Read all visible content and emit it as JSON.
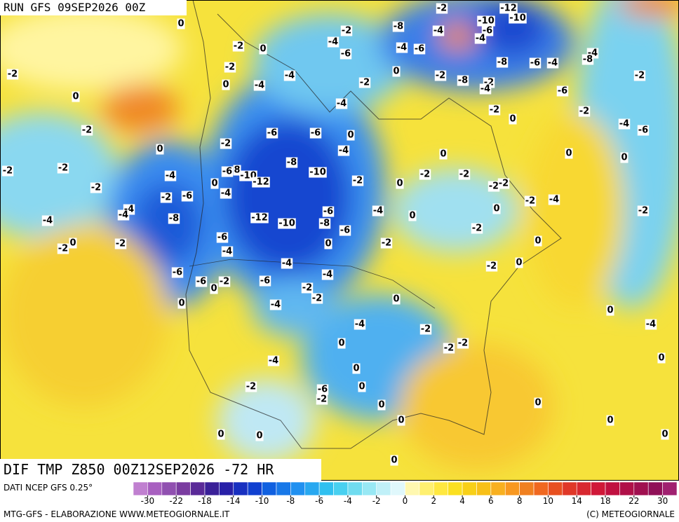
{
  "header": {
    "run": "RUN GFS 09SEP2026 00Z"
  },
  "map": {
    "title": "DIF TMP Z850 00Z12SEP2026 -72 HR",
    "contour_labels": [
      -2,
      -12,
      -8,
      -4,
      -10,
      -10,
      -6,
      -4,
      -2,
      -4,
      -6,
      -4,
      -6,
      -4,
      -8,
      -8,
      -6,
      -4,
      0,
      -2,
      -8,
      -2,
      -4,
      -2,
      -6,
      -2,
      -2,
      0,
      -4,
      -6,
      -2,
      0,
      0,
      -2,
      0,
      -2,
      0,
      -4,
      -4,
      -2,
      -4,
      -2,
      0,
      -6,
      -6,
      0,
      -2,
      -4,
      0,
      0,
      0,
      -2,
      -2,
      -4,
      -6,
      8,
      -10,
      -8,
      -10,
      -12,
      -2,
      -2,
      -2,
      0,
      -2,
      -2,
      -2,
      -6,
      -2,
      0,
      -4,
      -4,
      -4,
      -6,
      -4,
      0,
      -2,
      -4,
      0,
      -2,
      -4,
      -8,
      -12,
      -10,
      -8,
      -6,
      -2,
      -6,
      -2,
      -2,
      0,
      0,
      -2,
      0,
      -4,
      -4,
      0,
      -2,
      -6,
      -4,
      -6,
      -2,
      0,
      -6,
      -2,
      -2,
      0,
      -4,
      0,
      0,
      -4,
      -2,
      -4,
      0,
      -2,
      -2,
      0,
      -4,
      0,
      -2,
      -6,
      0,
      -2,
      0,
      0,
      0,
      0,
      0,
      0,
      0,
      0
    ]
  },
  "legend": {
    "source": "DATI NCEP GFS 0.25°",
    "colors": [
      "#c080d0",
      "#a860c0",
      "#9050b0",
      "#7a3ca0",
      "#5a2a98",
      "#3a2098",
      "#2820a8",
      "#1830c0",
      "#1040d0",
      "#1060e0",
      "#1878e8",
      "#2090f0",
      "#28a8f0",
      "#30c0f0",
      "#48d0f0",
      "#70dcf0",
      "#98e8f4",
      "#c0f0f8",
      "#e0f8fc",
      "#fff8b0",
      "#fff070",
      "#ffe840",
      "#fbe020",
      "#f8d018",
      "#f8c018",
      "#f8b020",
      "#f89820",
      "#f08020",
      "#f06820",
      "#e85020",
      "#e03828",
      "#d82830",
      "#d01838",
      "#c01040",
      "#b01048",
      "#a01050",
      "#901058",
      "#a02070"
    ],
    "ticks": [
      -30,
      -22,
      -18,
      -14,
      -10,
      -8,
      -6,
      -4,
      -2,
      0,
      2,
      4,
      6,
      8,
      10,
      14,
      18,
      22,
      30
    ]
  },
  "footer": {
    "left": "MTG-GFS - ELABORAZIONE WWW.METEOGIORNALE.IT",
    "right": "(C) METEOGIORNALE"
  }
}
